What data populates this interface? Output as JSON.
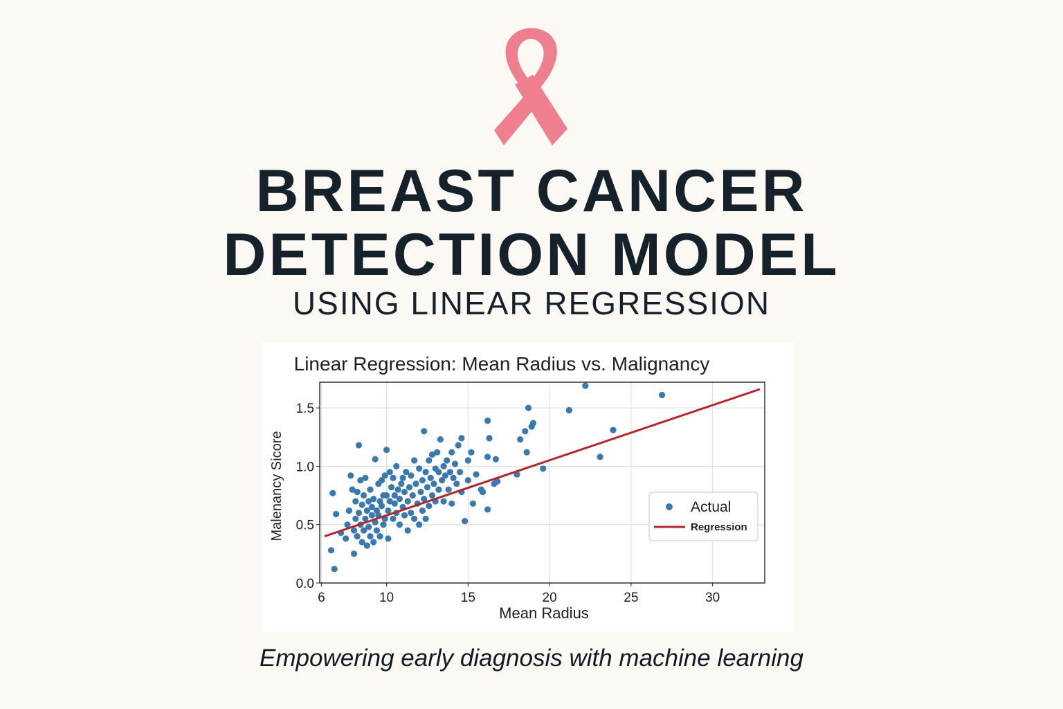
{
  "header": {
    "title_line1": "BREAST CANCER",
    "title_line2": "DETECTION MODEL",
    "subtitle": "USING LINEAR REGRESSION",
    "ribbon_icon": "pink-ribbon-icon",
    "ribbon_color": "#ef7f8f"
  },
  "footer": {
    "tagline": "Empowering early diagnosis with machine learning"
  },
  "chart_data": {
    "type": "scatter",
    "title": "Linear Regression: Mean Radius vs. Malignancy",
    "xlabel": "Mean Radius",
    "ylabel": "Malenancy Sicore",
    "xlim": [
      5.9,
      33.2
    ],
    "ylim": [
      0.0,
      1.72
    ],
    "xticks": [
      6,
      10,
      15,
      20,
      25,
      30
    ],
    "yticks": [
      0.0,
      0.5,
      1.0,
      1.5
    ],
    "ytick_labels": [
      "0.0",
      "0.5",
      "1.0",
      "1.5"
    ],
    "grid": true,
    "legend": {
      "placement": "right",
      "entries": [
        {
          "label": "Actual",
          "kind": "marker"
        },
        {
          "label": "Regression",
          "kind": "line"
        }
      ]
    },
    "colors": {
      "actual": "#3a78ad",
      "regression": "#b0262d"
    },
    "series": [
      {
        "name": "Actual",
        "kind": "scatter",
        "points": [
          [
            6.8,
            0.12
          ],
          [
            6.6,
            0.28
          ],
          [
            6.7,
            0.77
          ],
          [
            6.9,
            0.59
          ],
          [
            7.2,
            0.43
          ],
          [
            7.6,
            0.5
          ],
          [
            7.5,
            0.38
          ],
          [
            7.7,
            0.62
          ],
          [
            7.8,
            0.92
          ],
          [
            7.9,
            0.8
          ],
          [
            8.0,
            0.25
          ],
          [
            8.0,
            0.45
          ],
          [
            8.1,
            0.55
          ],
          [
            8.1,
            0.7
          ],
          [
            8.2,
            0.4
          ],
          [
            8.2,
            0.78
          ],
          [
            8.3,
            1.18
          ],
          [
            8.3,
            0.6
          ],
          [
            8.4,
            0.5
          ],
          [
            8.4,
            0.88
          ],
          [
            8.5,
            0.35
          ],
          [
            8.5,
            0.67
          ],
          [
            8.6,
            0.45
          ],
          [
            8.6,
            0.75
          ],
          [
            8.7,
            0.55
          ],
          [
            8.7,
            0.9
          ],
          [
            8.8,
            0.32
          ],
          [
            8.8,
            0.62
          ],
          [
            8.9,
            0.48
          ],
          [
            8.9,
            0.7
          ],
          [
            9.0,
            0.4
          ],
          [
            9.0,
            0.8
          ],
          [
            9.1,
            0.58
          ],
          [
            9.1,
            0.65
          ],
          [
            9.2,
            0.35
          ],
          [
            9.2,
            0.72
          ],
          [
            9.3,
            1.06
          ],
          [
            9.3,
            0.52
          ],
          [
            9.4,
            0.45
          ],
          [
            9.4,
            0.62
          ],
          [
            9.5,
            0.58
          ],
          [
            9.5,
            0.85
          ],
          [
            9.6,
            0.4
          ],
          [
            9.6,
            0.7
          ],
          [
            9.7,
            0.66
          ],
          [
            9.7,
            0.88
          ],
          [
            9.8,
            0.5
          ],
          [
            9.8,
            0.75
          ],
          [
            9.9,
            0.55
          ],
          [
            9.9,
            0.92
          ],
          [
            10.0,
            1.14
          ],
          [
            10.0,
            0.75
          ],
          [
            10.1,
            0.38
          ],
          [
            10.1,
            0.62
          ],
          [
            10.2,
            0.95
          ],
          [
            10.2,
            0.7
          ],
          [
            10.3,
            0.82
          ],
          [
            10.4,
            0.55
          ],
          [
            10.4,
            0.9
          ],
          [
            10.5,
            0.68
          ],
          [
            10.5,
            0.75
          ],
          [
            10.6,
            1.0
          ],
          [
            10.6,
            0.6
          ],
          [
            10.7,
            0.8
          ],
          [
            10.8,
            0.5
          ],
          [
            10.8,
            0.72
          ],
          [
            10.9,
            0.85
          ],
          [
            11.0,
            0.65
          ],
          [
            11.0,
            0.9
          ],
          [
            11.1,
            0.78
          ],
          [
            11.1,
            0.58
          ],
          [
            11.2,
            0.95
          ],
          [
            11.3,
            0.7
          ],
          [
            11.3,
            0.45
          ],
          [
            11.4,
            0.82
          ],
          [
            11.5,
            0.6
          ],
          [
            11.5,
            0.92
          ],
          [
            11.6,
            0.75
          ],
          [
            11.7,
            1.05
          ],
          [
            11.7,
            0.55
          ],
          [
            11.8,
            0.85
          ],
          [
            11.9,
            0.68
          ],
          [
            12.0,
            0.98
          ],
          [
            12.0,
            0.5
          ],
          [
            12.1,
            0.78
          ],
          [
            12.2,
            0.62
          ],
          [
            12.2,
            0.88
          ],
          [
            12.3,
            1.3
          ],
          [
            12.3,
            0.72
          ],
          [
            12.4,
            0.95
          ],
          [
            12.4,
            0.55
          ],
          [
            12.5,
            0.82
          ],
          [
            12.6,
            1.05
          ],
          [
            12.6,
            0.66
          ],
          [
            12.7,
            0.9
          ],
          [
            12.8,
            1.1
          ],
          [
            12.8,
            0.75
          ],
          [
            12.9,
            0.85
          ],
          [
            13.0,
            0.98
          ],
          [
            13.0,
            0.7
          ],
          [
            13.1,
            1.12
          ],
          [
            13.2,
            0.8
          ],
          [
            13.2,
            0.95
          ],
          [
            13.3,
            1.23
          ],
          [
            13.4,
            0.88
          ],
          [
            13.5,
            1.0
          ],
          [
            13.5,
            0.7
          ],
          [
            13.6,
            0.92
          ],
          [
            13.7,
            1.05
          ],
          [
            13.8,
            0.8
          ],
          [
            13.9,
            0.95
          ],
          [
            14.0,
            1.12
          ],
          [
            14.0,
            0.68
          ],
          [
            14.1,
            0.9
          ],
          [
            14.2,
            1.02
          ],
          [
            14.3,
            0.85
          ],
          [
            14.4,
            1.18
          ],
          [
            14.5,
            0.95
          ],
          [
            14.6,
            1.24
          ],
          [
            14.6,
            0.78
          ],
          [
            14.8,
            0.53
          ],
          [
            15.0,
            1.05
          ],
          [
            15.0,
            0.88
          ],
          [
            15.2,
            1.12
          ],
          [
            15.3,
            0.68
          ],
          [
            15.5,
            0.93
          ],
          [
            15.8,
            0.8
          ],
          [
            15.9,
            0.78
          ],
          [
            16.2,
            1.08
          ],
          [
            16.2,
            1.39
          ],
          [
            16.2,
            0.63
          ],
          [
            16.3,
            1.24
          ],
          [
            16.6,
            0.85
          ],
          [
            16.7,
            1.06
          ],
          [
            16.8,
            0.87
          ],
          [
            18.0,
            0.93
          ],
          [
            18.2,
            1.23
          ],
          [
            18.5,
            1.3
          ],
          [
            18.6,
            1.12
          ],
          [
            18.7,
            1.5
          ],
          [
            18.9,
            1.34
          ],
          [
            19.0,
            1.37
          ],
          [
            19.6,
            0.98
          ],
          [
            21.2,
            1.48
          ],
          [
            22.2,
            1.69
          ],
          [
            23.1,
            1.08
          ],
          [
            23.9,
            1.31
          ],
          [
            26.9,
            1.61
          ]
        ]
      },
      {
        "name": "Regression",
        "kind": "line",
        "x": [
          6.2,
          32.9
        ],
        "y": [
          0.4,
          1.66
        ]
      }
    ]
  }
}
